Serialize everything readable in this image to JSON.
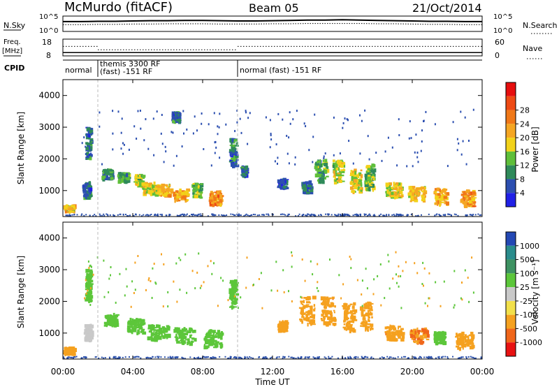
{
  "header": {
    "station": "McMurdo (fitACF)",
    "beam": "Beam 05",
    "date": "21/Oct/2014"
  },
  "noise_panel": {
    "left_label": "N.Sky",
    "right_label": "N.Search",
    "left_ticks": [
      "10^5",
      "10^0"
    ],
    "right_ticks": [
      "10^5",
      "10^0"
    ]
  },
  "freq_panel": {
    "left_label_1": "Freq.",
    "left_label_2": "[MHz]",
    "right_label": "Nave",
    "left_ticks": [
      "18",
      "8"
    ],
    "right_ticks": [
      "60",
      "0"
    ]
  },
  "cpid_panel": {
    "label": "CPID",
    "segments": [
      {
        "start_hr": 0,
        "end_hr": 2,
        "lines": [
          "normal"
        ]
      },
      {
        "start_hr": 2,
        "end_hr": 10,
        "lines": [
          "themis 3300 RF",
          "(fast) -151 RF"
        ]
      },
      {
        "start_hr": 10,
        "end_hr": 24,
        "lines": [
          "normal (fast) -151 RF"
        ]
      }
    ]
  },
  "power_panel": {
    "ylabel": "Slant Range [km]",
    "yticks": [
      "1000",
      "2000",
      "3000",
      "4000"
    ],
    "colorbar_label": "Power [dB]",
    "colorbar_ticks": [
      "4",
      "8",
      "12",
      "16",
      "20",
      "24",
      "28"
    ],
    "colors": [
      "#2020e6",
      "#2c4fb0",
      "#2f8a5a",
      "#5fbf3a",
      "#f2d21a",
      "#f5a623",
      "#f07818",
      "#ee4a14",
      "#e60e0e"
    ]
  },
  "velocity_panel": {
    "ylabel": "Slant Range [km]",
    "yticks": [
      "1000",
      "2000",
      "3000",
      "4000"
    ],
    "colorbar_label": "Velocity [m s⁻¹]",
    "colorbar_ticks": [
      "1000",
      "500",
      "100",
      "25",
      "-25",
      "-100",
      "-500",
      "-1000"
    ],
    "colors": [
      "#2448b4",
      "#2a8c8c",
      "#3e9262",
      "#5cc63a",
      "#c9c9c9",
      "#f2e04a",
      "#f5a11f",
      "#f0661a",
      "#e81212"
    ]
  },
  "xaxis": {
    "label": "Time UT",
    "ticks": [
      "00:00",
      "04:00",
      "08:00",
      "12:00",
      "16:00",
      "20:00",
      "00:00"
    ]
  },
  "chart_data": [
    {
      "type": "line",
      "name": "noise",
      "x_range_hours": [
        0,
        24
      ],
      "series": [
        {
          "name": "N.Sky",
          "y_log10": [
            3.2,
            3.2,
            3.3,
            3.3,
            3.4,
            3.5,
            3.5,
            3.6,
            3.6,
            3.5,
            3.4,
            3.4,
            3.5,
            3.6,
            3.7,
            3.7,
            3.8,
            3.7,
            3.6,
            3.5,
            3.4,
            3.3,
            3.3,
            3.2,
            3.2
          ]
        },
        {
          "name": "N.Search",
          "y_log10": [
            2.2,
            2.2,
            2.3,
            2.3,
            2.4,
            2.4,
            2.5,
            2.5,
            2.5,
            2.4,
            2.4,
            2.4,
            2.5,
            2.5,
            2.6,
            2.6,
            2.6,
            2.6,
            2.5,
            2.5,
            2.4,
            2.3,
            2.3,
            2.2,
            2.2
          ]
        }
      ]
    },
    {
      "type": "line",
      "name": "frequency",
      "ylim": [
        8,
        18
      ],
      "series": [
        {
          "name": "Freq.",
          "segments": [
            {
              "start_hr": 0,
              "end_hr": 24,
              "value": 10.0
            }
          ]
        },
        {
          "name": "Nave",
          "segments": [
            {
              "start_hr": 0,
              "end_hr": 2,
              "value": 34
            },
            {
              "start_hr": 2,
              "end_hr": 10,
              "value": 22
            },
            {
              "start_hr": 10,
              "end_hr": 24,
              "value": 34
            }
          ]
        }
      ]
    },
    {
      "type": "heatmap",
      "name": "power",
      "x_range_hours": [
        0,
        24
      ],
      "ylim": [
        180,
        4500
      ],
      "patches": [
        {
          "t": 0.4,
          "r": 420,
          "dt": 0.6,
          "dr": 200,
          "v": 20
        },
        {
          "t": 1.4,
          "r": 1000,
          "dt": 0.4,
          "dr": 500,
          "v": 8
        },
        {
          "t": 1.5,
          "r": 2500,
          "dt": 0.3,
          "dr": 1000,
          "v": 8
        },
        {
          "t": 2.6,
          "r": 1500,
          "dt": 0.6,
          "dr": 300,
          "v": 10
        },
        {
          "t": 3.5,
          "r": 1400,
          "dt": 0.6,
          "dr": 300,
          "v": 12
        },
        {
          "t": 4.4,
          "r": 1300,
          "dt": 0.5,
          "dr": 350,
          "v": 16
        },
        {
          "t": 5.0,
          "r": 1050,
          "dt": 0.8,
          "dr": 350,
          "v": 18
        },
        {
          "t": 5.8,
          "r": 1000,
          "dt": 0.9,
          "dr": 350,
          "v": 20
        },
        {
          "t": 6.8,
          "r": 850,
          "dt": 0.8,
          "dr": 350,
          "v": 22
        },
        {
          "t": 7.7,
          "r": 1000,
          "dt": 0.5,
          "dr": 450,
          "v": 14
        },
        {
          "t": 8.8,
          "r": 750,
          "dt": 0.7,
          "dr": 450,
          "v": 24
        },
        {
          "t": 6.5,
          "r": 3300,
          "dt": 0.4,
          "dr": 300,
          "v": 8
        },
        {
          "t": 9.8,
          "r": 2200,
          "dt": 0.4,
          "dr": 900,
          "v": 8
        },
        {
          "t": 10.4,
          "r": 1600,
          "dt": 0.3,
          "dr": 300,
          "v": 8
        },
        {
          "t": 12.6,
          "r": 1200,
          "dt": 0.5,
          "dr": 300,
          "v": 8
        },
        {
          "t": 14.0,
          "r": 1100,
          "dt": 0.5,
          "dr": 350,
          "v": 8
        },
        {
          "t": 14.8,
          "r": 1600,
          "dt": 0.7,
          "dr": 700,
          "v": 12
        },
        {
          "t": 15.8,
          "r": 1600,
          "dt": 0.6,
          "dr": 700,
          "v": 16
        },
        {
          "t": 16.8,
          "r": 1300,
          "dt": 0.6,
          "dr": 700,
          "v": 18
        },
        {
          "t": 17.6,
          "r": 1400,
          "dt": 0.5,
          "dr": 800,
          "v": 14
        },
        {
          "t": 19.0,
          "r": 1000,
          "dt": 0.9,
          "dr": 450,
          "v": 18
        },
        {
          "t": 20.3,
          "r": 900,
          "dt": 0.9,
          "dr": 500,
          "v": 20
        },
        {
          "t": 21.7,
          "r": 800,
          "dt": 0.8,
          "dr": 500,
          "v": 22
        },
        {
          "t": 23.2,
          "r": 750,
          "dt": 0.8,
          "dr": 500,
          "v": 24
        }
      ]
    },
    {
      "type": "heatmap",
      "name": "velocity",
      "x_range_hours": [
        0,
        24
      ],
      "ylim": [
        180,
        4500
      ],
      "patches": [
        {
          "t": 0.4,
          "r": 420,
          "dt": 0.6,
          "dr": 200,
          "v": -400
        },
        {
          "t": 1.5,
          "r": 1000,
          "dt": 0.4,
          "dr": 500,
          "v": 0
        },
        {
          "t": 1.5,
          "r": 2500,
          "dt": 0.3,
          "dr": 1000,
          "v": 50
        },
        {
          "t": 2.8,
          "r": 1400,
          "dt": 0.7,
          "dr": 350,
          "v": 60
        },
        {
          "t": 4.2,
          "r": 1200,
          "dt": 0.9,
          "dr": 450,
          "v": 70
        },
        {
          "t": 5.5,
          "r": 1000,
          "dt": 1.2,
          "dr": 450,
          "v": 60
        },
        {
          "t": 7.0,
          "r": 900,
          "dt": 1.2,
          "dr": 500,
          "v": 70
        },
        {
          "t": 8.6,
          "r": 800,
          "dt": 1.0,
          "dr": 550,
          "v": 60
        },
        {
          "t": 9.8,
          "r": 2200,
          "dt": 0.4,
          "dr": 900,
          "v": 40
        },
        {
          "t": 12.6,
          "r": 1200,
          "dt": 0.5,
          "dr": 300,
          "v": -300
        },
        {
          "t": 14.0,
          "r": 1700,
          "dt": 0.8,
          "dr": 900,
          "v": -400
        },
        {
          "t": 15.2,
          "r": 1700,
          "dt": 0.8,
          "dr": 900,
          "v": -450
        },
        {
          "t": 16.4,
          "r": 1500,
          "dt": 0.7,
          "dr": 900,
          "v": -400
        },
        {
          "t": 17.4,
          "r": 1500,
          "dt": 0.6,
          "dr": 900,
          "v": -350
        },
        {
          "t": 19.0,
          "r": 1000,
          "dt": 1.0,
          "dr": 450,
          "v": -450
        },
        {
          "t": 20.4,
          "r": 900,
          "dt": 1.0,
          "dr": 450,
          "v": -500
        },
        {
          "t": 21.6,
          "r": 850,
          "dt": 0.6,
          "dr": 350,
          "v": 60
        },
        {
          "t": 23.0,
          "r": 750,
          "dt": 1.0,
          "dr": 500,
          "v": -450
        }
      ]
    }
  ]
}
